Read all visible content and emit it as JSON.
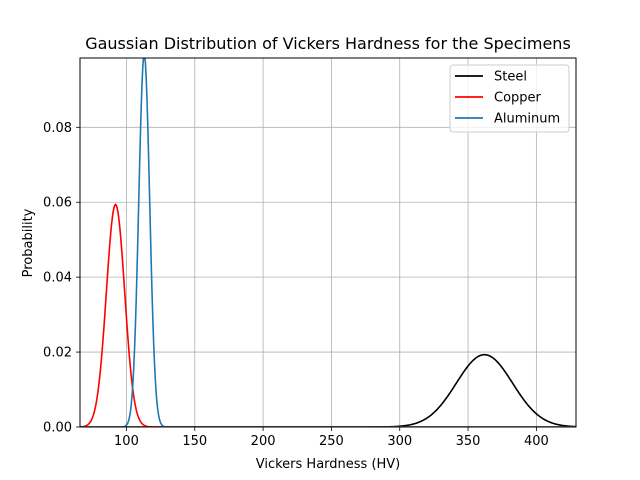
{
  "chart_data": {
    "type": "line",
    "title": "Gaussian Distribution of Vickers Hardness for the Specimens",
    "xlabel": "Vickers Hardness (HV)",
    "ylabel": "Probability",
    "xlim": [
      66,
      429
    ],
    "ylim": [
      0,
      0.0985
    ],
    "xticks": [
      100,
      150,
      200,
      250,
      300,
      350,
      400
    ],
    "xtick_labels": [
      "100",
      "150",
      "200",
      "250",
      "300",
      "350",
      "400"
    ],
    "yticks": [
      0,
      0.02,
      0.04,
      0.06,
      0.08
    ],
    "ytick_labels": [
      "0.00",
      "0.02",
      "0.04",
      "0.06",
      "0.08"
    ],
    "grid": true,
    "legend_position": "top-right",
    "series": [
      {
        "name": "Steel",
        "color": "#000000",
        "mean": 362,
        "std": 20.6,
        "peak": 0.0193
      },
      {
        "name": "Copper",
        "color": "#ff0000",
        "mean": 92,
        "std": 6.7,
        "peak": 0.0594
      },
      {
        "name": "Aluminum",
        "color": "#1f77b4",
        "mean": 113,
        "std": 4.0,
        "peak": 0.0995
      }
    ]
  }
}
